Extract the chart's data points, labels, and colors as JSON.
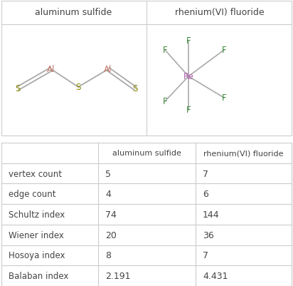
{
  "title_row": [
    "aluminum sulfide",
    "rhenium(VI) fluoride"
  ],
  "table_rows": [
    [
      "vertex count",
      "5",
      "7"
    ],
    [
      "edge count",
      "4",
      "6"
    ],
    [
      "Schultz index",
      "74",
      "144"
    ],
    [
      "Wiener index",
      "20",
      "36"
    ],
    [
      "Hosoya index",
      "8",
      "7"
    ],
    [
      "Balaban index",
      "2.191",
      "4.431"
    ]
  ],
  "bg_color": "#ffffff",
  "grid_color": "#cccccc",
  "text_color": "#444444",
  "al_color": "#c47a6a",
  "s_color": "#8a8a00",
  "re_color": "#b060b0",
  "f_color": "#3a8a3a",
  "bond_color": "#aaaaaa"
}
